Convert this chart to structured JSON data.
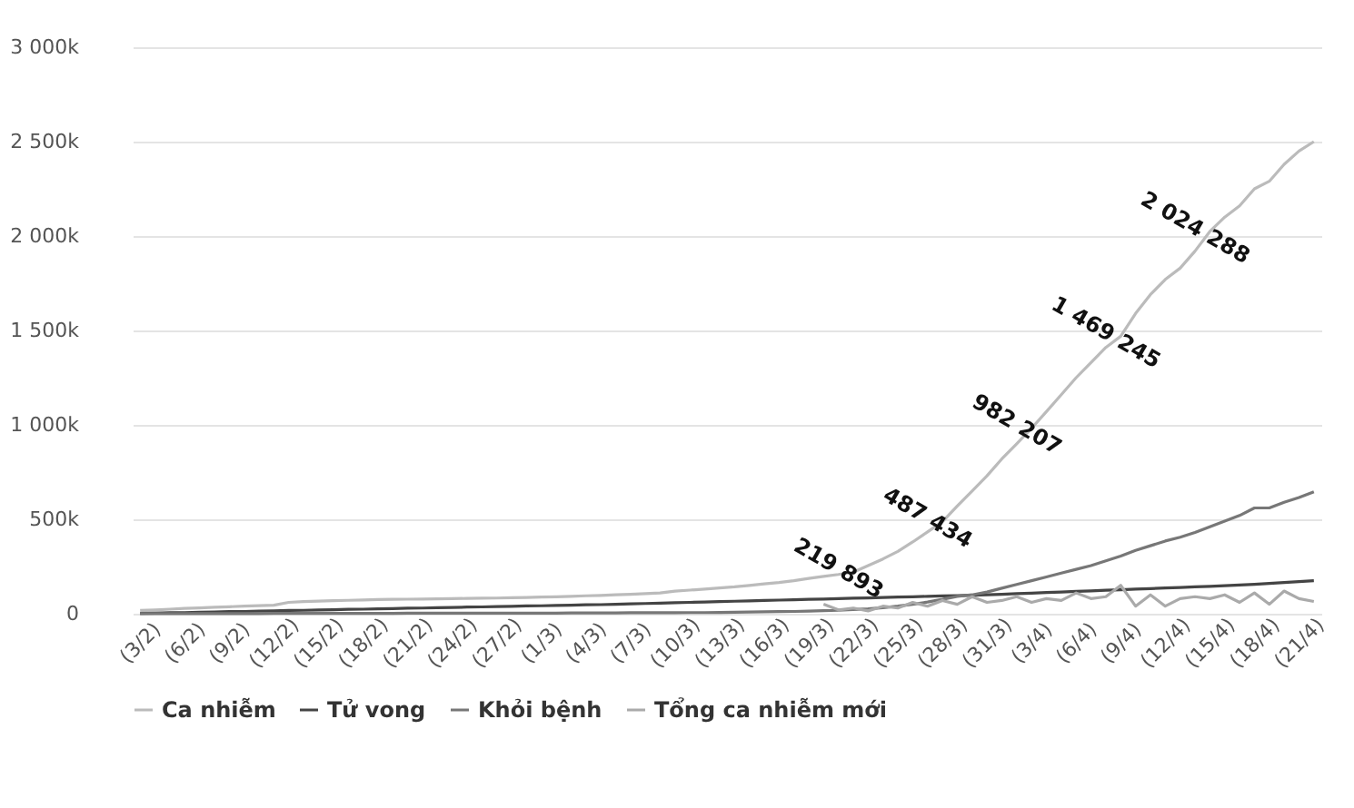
{
  "chart_data": {
    "type": "line",
    "categories": [
      "(3/2)",
      null,
      null,
      "(6/2)",
      null,
      null,
      "(9/2)",
      null,
      null,
      "(12/2)",
      null,
      null,
      "(15/2)",
      null,
      null,
      "(18/2)",
      null,
      null,
      "(21/2)",
      null,
      null,
      "(24/2)",
      null,
      null,
      "(27/2)",
      null,
      null,
      "(1/3)",
      null,
      null,
      "(4/3)",
      null,
      null,
      "(7/3)",
      null,
      null,
      "(10/3)",
      null,
      null,
      "(13/3)",
      null,
      null,
      "(16/3)",
      null,
      null,
      "(19/3)",
      null,
      null,
      "(22/3)",
      null,
      null,
      "(25/3)",
      null,
      null,
      "(28/3)",
      null,
      null,
      "(31/3)",
      null,
      null,
      "(3/4)",
      null,
      null,
      "(6/4)",
      null,
      null,
      "(9/4)",
      null,
      null,
      "(12/4)",
      null,
      null,
      "(15/4)",
      null,
      null,
      "(18/4)",
      null,
      null,
      "(21/4)",
      null
    ],
    "series": [
      {
        "name": "Ca nhiễm",
        "color": "#bbbbbb",
        "values": [
          17000,
          20000,
          24000,
          28000,
          31000,
          34000,
          37000,
          40000,
          43000,
          45000,
          60000,
          64000,
          67000,
          69000,
          71000,
          73000,
          75000,
          76000,
          77000,
          78000,
          79000,
          80000,
          81000,
          82000,
          83000,
          85000,
          86000,
          88000,
          90000,
          92000,
          95000,
          97000,
          100000,
          103000,
          106000,
          110000,
          120000,
          125000,
          130000,
          136000,
          142000,
          150000,
          158000,
          165000,
          175000,
          187000,
          198000,
          208000,
          219893,
          255000,
          290000,
          330000,
          380000,
          433000,
          487434,
          570000,
          650000,
          730000,
          820000,
          900000,
          982207,
          1070000,
          1160000,
          1250000,
          1330000,
          1410000,
          1469245,
          1590000,
          1690000,
          1770000,
          1830000,
          1920000,
          2024288,
          2100000,
          2160000,
          2250000,
          2290000,
          2380000,
          2450000,
          2500000
        ],
        "value_labels": [
          null,
          null,
          null,
          null,
          null,
          null,
          null,
          null,
          null,
          null,
          null,
          null,
          null,
          null,
          null,
          null,
          null,
          null,
          null,
          null,
          null,
          null,
          null,
          null,
          null,
          null,
          null,
          null,
          null,
          null,
          null,
          null,
          null,
          null,
          null,
          null,
          null,
          null,
          null,
          null,
          null,
          null,
          null,
          null,
          null,
          null,
          null,
          null,
          "219 893",
          null,
          null,
          null,
          null,
          null,
          "487 434",
          null,
          null,
          null,
          null,
          null,
          "982 207",
          null,
          null,
          null,
          null,
          null,
          "1 469 245",
          null,
          null,
          null,
          null,
          null,
          "2 024 288",
          null,
          null,
          null,
          null,
          null,
          null,
          null
        ]
      },
      {
        "name": "Tử vong",
        "color": "#444444",
        "values": [
          2000,
          3000,
          5000,
          6000,
          8000,
          9000,
          11000,
          12000,
          14000,
          15000,
          17000,
          18000,
          20000,
          21000,
          23000,
          24000,
          26000,
          27000,
          29000,
          30000,
          32000,
          33000,
          35000,
          36000,
          38000,
          39000,
          41000,
          42000,
          44000,
          45000,
          47000,
          48000,
          50000,
          52000,
          54000,
          56000,
          58000,
          60000,
          62000,
          64000,
          66000,
          68000,
          70000,
          72000,
          74000,
          76000,
          78000,
          80000,
          82000,
          84000,
          86000,
          88000,
          90000,
          92000,
          94000,
          96000,
          98000,
          100000,
          103000,
          106000,
          109000,
          112000,
          115000,
          118000,
          121000,
          124000,
          127000,
          130000,
          133000,
          136000,
          139000,
          142000,
          145000,
          148000,
          152000,
          156000,
          160000,
          165000,
          170000,
          175000
        ]
      },
      {
        "name": "Khỏi bệnh",
        "color": "#777777",
        "values": [
          1000,
          1000,
          1000,
          1000,
          1000,
          1000,
          1000,
          1000,
          1000,
          2000,
          2000,
          2000,
          2000,
          2000,
          2000,
          2000,
          2000,
          2000,
          3000,
          3000,
          3000,
          3000,
          3000,
          3000,
          3000,
          3000,
          3000,
          3000,
          3000,
          4000,
          4000,
          4000,
          4000,
          5000,
          5000,
          5000,
          5000,
          6000,
          6000,
          7000,
          8000,
          9000,
          10000,
          11000,
          12000,
          14000,
          16000,
          18000,
          22000,
          26000,
          32000,
          40000,
          50000,
          62000,
          76000,
          92000,
          100000,
          115000,
          135000,
          155000,
          175000,
          195000,
          215000,
          235000,
          255000,
          280000,
          305000,
          335000,
          360000,
          385000,
          405000,
          430000,
          460000,
          490000,
          520000,
          560000,
          560000,
          590000,
          615000,
          645000
        ]
      },
      {
        "name": "Tổng ca nhiễm mới",
        "color": "#aaaaaa",
        "values": [
          null,
          null,
          null,
          null,
          null,
          null,
          null,
          null,
          null,
          null,
          null,
          null,
          null,
          null,
          null,
          null,
          null,
          null,
          null,
          null,
          null,
          null,
          null,
          null,
          null,
          null,
          null,
          null,
          null,
          null,
          null,
          null,
          null,
          null,
          null,
          null,
          null,
          null,
          null,
          null,
          null,
          null,
          null,
          null,
          null,
          null,
          50000,
          20000,
          30000,
          15000,
          40000,
          30000,
          60000,
          40000,
          70000,
          50000,
          90000,
          60000,
          70000,
          90000,
          60000,
          80000,
          70000,
          110000,
          80000,
          90000,
          150000,
          40000,
          100000,
          40000,
          80000,
          90000,
          80000,
          100000,
          60000,
          110000,
          50000,
          120000,
          80000,
          65000
        ]
      }
    ],
    "ylim": [
      0,
      3000000
    ],
    "yticks": [
      {
        "value": 0,
        "label": "0"
      },
      {
        "value": 500000,
        "label": "500k"
      },
      {
        "value": 1000000,
        "label": "1 000k"
      },
      {
        "value": 1500000,
        "label": "1 500k"
      },
      {
        "value": 2000000,
        "label": "2 000k"
      },
      {
        "value": 2500000,
        "label": "2 500k"
      },
      {
        "value": 3000000,
        "label": "3 000k"
      }
    ],
    "grid": "y",
    "legend": "bottom",
    "marker": "none",
    "line_style": "solid"
  }
}
